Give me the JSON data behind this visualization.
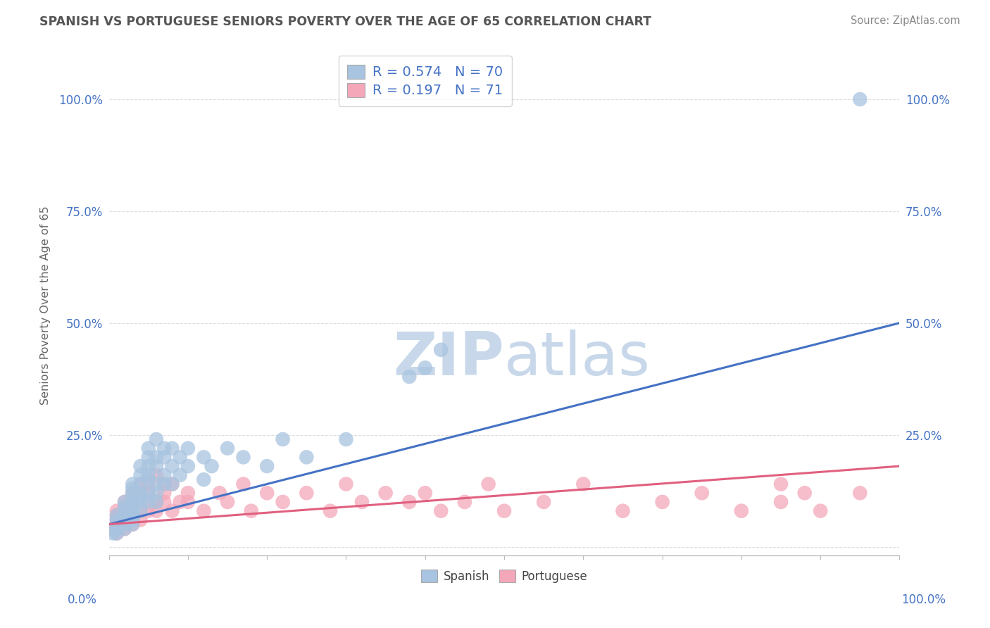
{
  "title": "SPANISH VS PORTUGUESE SENIORS POVERTY OVER THE AGE OF 65 CORRELATION CHART",
  "source": "Source: ZipAtlas.com",
  "ylabel": "Seniors Poverty Over the Age of 65",
  "ytick_labels": [
    "",
    "25.0%",
    "50.0%",
    "75.0%",
    "100.0%"
  ],
  "ytick_values": [
    0,
    25,
    50,
    75,
    100
  ],
  "xlim": [
    0,
    100
  ],
  "ylim": [
    -2,
    110
  ],
  "spanish_R": "0.574",
  "spanish_N": "70",
  "portuguese_R": "0.197",
  "portuguese_N": "71",
  "spanish_color": "#a8c4e0",
  "portuguese_color": "#f4a7b9",
  "spanish_line_color": "#4472c4",
  "portuguese_line_color": "#e06080",
  "title_color": "#555555",
  "source_color": "#888888",
  "legend_text_color": "#4472c4",
  "watermark_color": "#c8d8ea",
  "grid_color": "#dddddd",
  "spanish_scatter_x": [
    0.5,
    1,
    1,
    1,
    1,
    1,
    1,
    2,
    2,
    2,
    2,
    2,
    2,
    2,
    2,
    3,
    3,
    3,
    3,
    3,
    3,
    3,
    3,
    3,
    3,
    3,
    4,
    4,
    4,
    4,
    4,
    4,
    4,
    5,
    5,
    5,
    5,
    5,
    5,
    5,
    6,
    6,
    6,
    6,
    6,
    6,
    7,
    7,
    7,
    7,
    8,
    8,
    8,
    9,
    9,
    10,
    10,
    12,
    12,
    13,
    15,
    17,
    20,
    22,
    25,
    30,
    38,
    40,
    42,
    95
  ],
  "spanish_scatter_y": [
    3,
    4,
    6,
    5,
    7,
    4,
    3,
    8,
    10,
    6,
    5,
    9,
    7,
    4,
    6,
    12,
    10,
    8,
    14,
    11,
    9,
    13,
    7,
    5,
    8,
    6,
    16,
    12,
    18,
    10,
    14,
    8,
    11,
    20,
    15,
    22,
    12,
    18,
    10,
    16,
    24,
    18,
    14,
    20,
    12,
    10,
    22,
    16,
    20,
    14,
    18,
    22,
    14,
    20,
    16,
    18,
    22,
    20,
    15,
    18,
    22,
    20,
    18,
    24,
    20,
    24,
    38,
    40,
    44,
    100
  ],
  "portuguese_scatter_x": [
    0.5,
    1,
    1,
    1,
    1,
    1,
    1,
    1,
    2,
    2,
    2,
    2,
    2,
    2,
    2,
    3,
    3,
    3,
    3,
    3,
    3,
    3,
    3,
    4,
    4,
    4,
    4,
    5,
    5,
    5,
    5,
    6,
    6,
    6,
    7,
    7,
    7,
    8,
    8,
    9,
    10,
    10,
    12,
    14,
    15,
    17,
    18,
    20,
    22,
    25,
    28,
    30,
    32,
    35,
    38,
    40,
    42,
    45,
    48,
    50,
    55,
    60,
    65,
    70,
    75,
    80,
    85,
    88,
    90,
    95,
    85
  ],
  "portuguese_scatter_y": [
    4,
    5,
    7,
    3,
    6,
    8,
    4,
    5,
    9,
    6,
    10,
    5,
    8,
    7,
    4,
    10,
    8,
    12,
    6,
    9,
    7,
    11,
    5,
    12,
    8,
    14,
    6,
    10,
    14,
    8,
    12,
    10,
    16,
    8,
    12,
    10,
    14,
    8,
    14,
    10,
    10,
    12,
    8,
    12,
    10,
    14,
    8,
    12,
    10,
    12,
    8,
    14,
    10,
    12,
    10,
    12,
    8,
    10,
    14,
    8,
    10,
    14,
    8,
    10,
    12,
    8,
    10,
    12,
    8,
    12,
    14
  ]
}
